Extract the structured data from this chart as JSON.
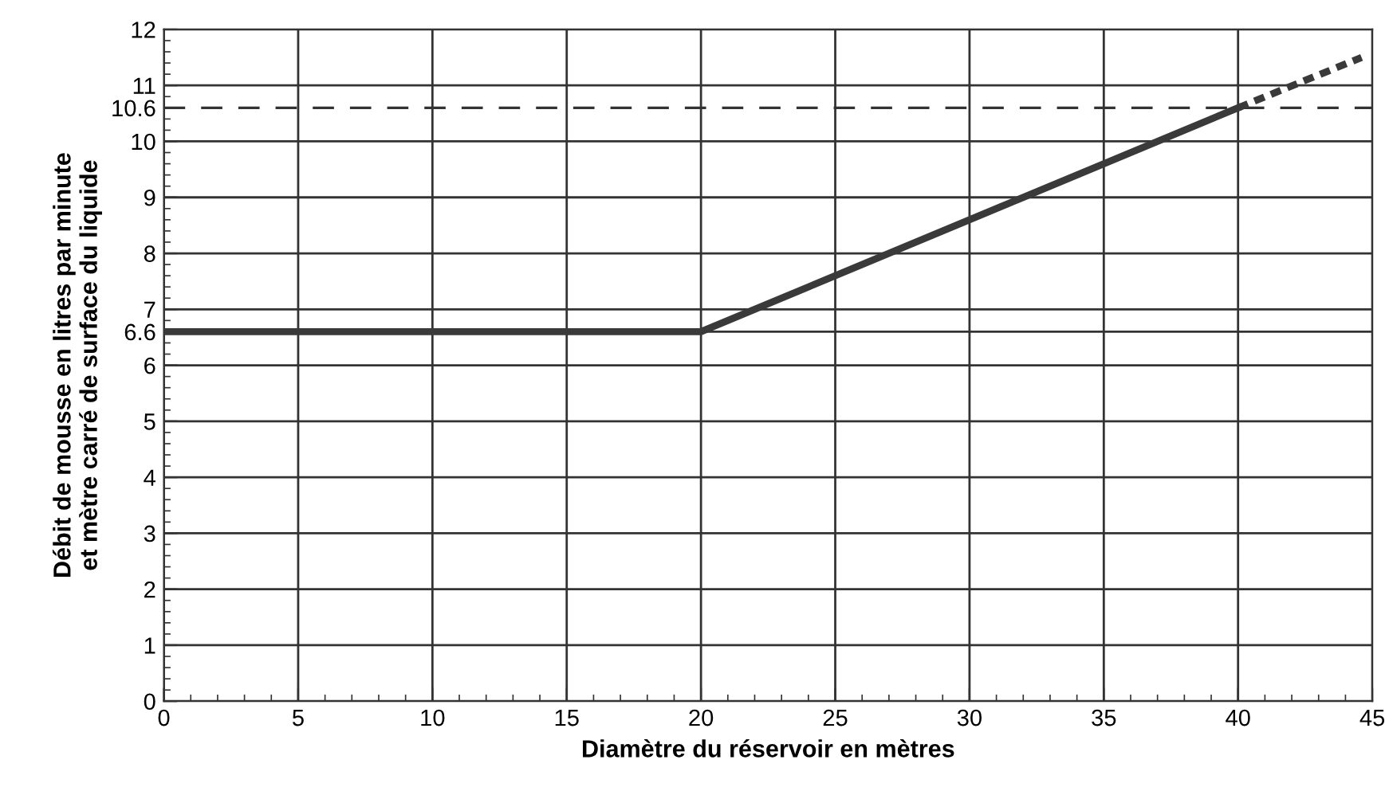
{
  "chart_data": {
    "type": "line",
    "xlabel": "Diamètre du réservoir en mètres",
    "ylabel": "Débit de mousse en litres par minute\net mètre carré de surface du liquide",
    "series": [
      {
        "x": [
          0,
          20,
          40
        ],
        "values": [
          6.6,
          6.6,
          10.6
        ],
        "color": "#3a3a3a",
        "line_style": "solid"
      },
      {
        "x": [
          40,
          44.6
        ],
        "values": [
          10.6,
          11.5
        ],
        "color": "#3a3a3a",
        "line_style": "dotted"
      }
    ],
    "xlim": [
      0,
      45
    ],
    "xticks": [
      0,
      5,
      10,
      15,
      20,
      25,
      30,
      35,
      40,
      45
    ],
    "ylim": [
      0,
      12
    ],
    "yticks": [
      0,
      1,
      2,
      3,
      4,
      5,
      6,
      6.6,
      7,
      8,
      9,
      10,
      10.6,
      11,
      12
    ],
    "ref_lines": [
      {
        "axis": "y",
        "value": 10.6,
        "color": "#333333",
        "line_style": "dashed"
      }
    ],
    "grid": true,
    "legend": false,
    "marker": "none"
  }
}
